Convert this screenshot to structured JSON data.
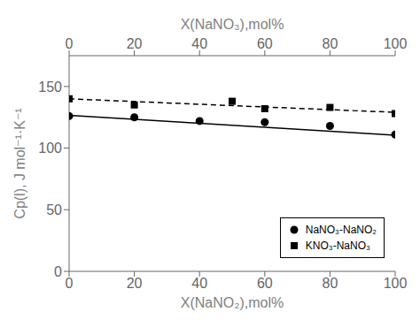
{
  "chart_data": {
    "type": "scatter",
    "xlabel": "X(NaNO₂),mol%",
    "x2label": "X(NaNO₃),mol%",
    "ylabel": "Cp(l), J mol⁻¹·K⁻¹",
    "xlim": [
      0,
      100
    ],
    "xticks": [
      0,
      20,
      40,
      60,
      80,
      100
    ],
    "x2lim": [
      0,
      100
    ],
    "x2ticks": [
      0,
      20,
      40,
      60,
      80,
      100
    ],
    "ylim": [
      0,
      175
    ],
    "yticks": [
      0,
      50,
      100,
      150
    ],
    "grid": false,
    "legend": "lower right",
    "series": [
      {
        "name": "NaNO₃-NaNO₂",
        "color": "#000000",
        "marker": "circle",
        "axis": "x",
        "x": [
          0,
          20,
          40,
          60,
          80,
          100
        ],
        "values": [
          126,
          125,
          122,
          121,
          118,
          111
        ],
        "fit": {
          "line_style": "solid",
          "x": [
            0,
            100
          ],
          "values": [
            126.5,
            110.5
          ]
        }
      },
      {
        "name": "KNO₃-NaNO₃",
        "color": "#000000",
        "marker": "square",
        "axis": "x2",
        "x": [
          0,
          20,
          50,
          60,
          80,
          100
        ],
        "values": [
          140,
          135,
          138,
          132,
          133,
          128
        ],
        "fit": {
          "line_style": "dashed",
          "x": [
            0,
            100
          ],
          "values": [
            140,
            129
          ]
        }
      }
    ]
  }
}
